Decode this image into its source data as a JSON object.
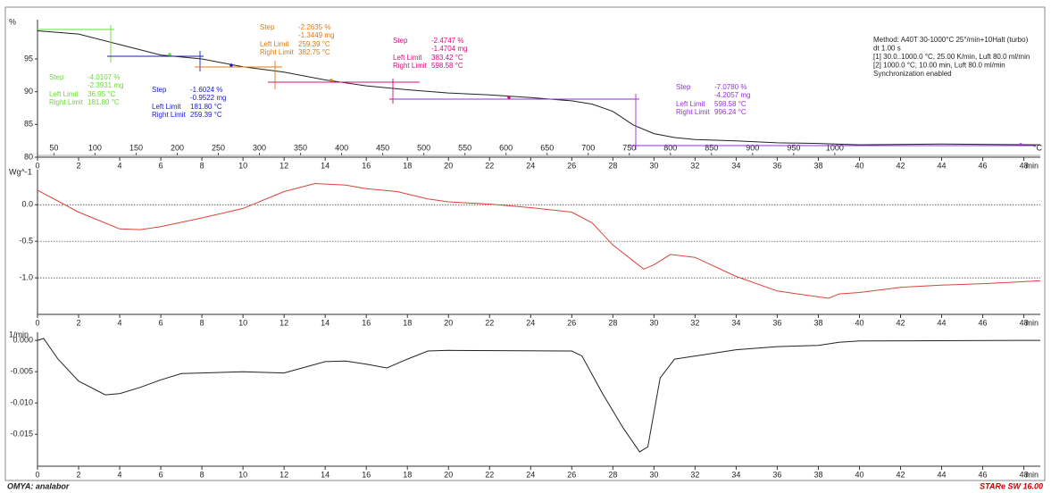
{
  "chart_data": [
    {
      "type": "line",
      "ylabel": "%",
      "x_unit": "min",
      "color": "#222222",
      "xlim": [
        0,
        48.8
      ],
      "xticks": [
        0,
        2,
        4,
        6,
        8,
        10,
        12,
        14,
        16,
        18,
        20,
        22,
        24,
        26,
        28,
        30,
        32,
        34,
        36,
        38,
        40,
        42,
        44,
        46,
        48
      ],
      "ylim": [
        80,
        101
      ],
      "yticks": [
        80,
        85,
        90,
        95
      ],
      "grid": false,
      "x": [
        0,
        2,
        4,
        6,
        8,
        10,
        12,
        14,
        16,
        18,
        20,
        22,
        24,
        26,
        27,
        28,
        29,
        30,
        31,
        32,
        34,
        36,
        38,
        40,
        44,
        48.8
      ],
      "values": [
        99.3,
        98.8,
        97.2,
        95.6,
        95,
        93.8,
        93,
        91.8,
        90.9,
        90.3,
        89.8,
        89.5,
        89.1,
        88.6,
        88.1,
        87,
        84.9,
        83.6,
        83,
        82.7,
        82.5,
        82.2,
        82.1,
        81.9,
        82,
        81.9
      ],
      "temperature_axis": {
        "unit": "°C",
        "start": 30,
        "rate": 25,
        "ticks": [
          50,
          100,
          150,
          200,
          250,
          300,
          350,
          400,
          450,
          500,
          550,
          600,
          650,
          700,
          750,
          800,
          850,
          900,
          950,
          1000
        ]
      },
      "steps": [
        {
          "color": "#66dd33",
          "label": "Step",
          "value": "-4.0107 %",
          "mass": "-2.3931 mg",
          "left_label": "Left Limit",
          "left": "36.95 °C",
          "right_label": "Right Limit",
          "right": "181.80 °C"
        },
        {
          "color": "#1a1acc",
          "label": "Step",
          "value": "-1.6024 %",
          "mass": "-0.9522 mg",
          "left_label": "Left Limit",
          "left": "181.80 °C",
          "right_label": "Right Limit",
          "right": "259.39 °C"
        },
        {
          "color": "#e07a10",
          "label": "Step",
          "value": "-2.2635 %",
          "mass": "-1.3449 mg",
          "left_label": "Left Limit",
          "left": "259.39 °C",
          "right_label": "Right Limit",
          "right": "382.75 °C"
        },
        {
          "color": "#d0107a",
          "label": "Step",
          "value": "-2.4747 %",
          "mass": "-1.4704 mg",
          "left_label": "Left Limit",
          "left": "383.42 °C",
          "right_label": "Right Limit",
          "right": "598.58 °C"
        },
        {
          "color": "#9a2ee0",
          "label": "Step",
          "value": "-7.0780 %",
          "mass": "-4.2057 mg",
          "left_label": "Left Limit",
          "left": "598.58 °C",
          "right_label": "Right Limit",
          "right": "996.24 °C"
        }
      ],
      "method": [
        "Method: A40T 30-1000°C 25°/min+10Halt (turbo)",
        "dt 1.00 s",
        "[1] 30.0..1000.0 °C, 25.00 K/min,   Luft 80.0 ml/min",
        "[2] 1000.0 °C, 10.00 min,          Luft 80.0 ml/min",
        "Synchronization enabled"
      ]
    },
    {
      "type": "line",
      "ylabel": "Wg^-1",
      "x_unit": "min",
      "color": "#d9443a",
      "xlim": [
        0,
        48.8
      ],
      "xticks": [
        0,
        2,
        4,
        6,
        8,
        10,
        12,
        14,
        16,
        18,
        20,
        22,
        24,
        26,
        28,
        30,
        32,
        34,
        36,
        38,
        40,
        42,
        44,
        46,
        48
      ],
      "ylim": [
        -1.5,
        0.48
      ],
      "yticks": [
        {
          "value": 0,
          "label": "0.0"
        },
        -0.5,
        {
          "value": -1,
          "label": "-1.0"
        }
      ],
      "grid": true,
      "x": [
        0,
        2,
        4,
        5,
        6,
        8,
        10,
        12,
        13.5,
        15,
        16,
        17.5,
        19,
        20,
        22,
        24,
        26,
        27,
        28,
        29.5,
        30,
        30.8,
        32,
        34,
        36,
        38.5,
        39,
        40,
        42,
        44,
        46,
        48.8
      ],
      "values": [
        0.2,
        -0.1,
        -0.33,
        -0.34,
        -0.3,
        -0.18,
        -0.05,
        0.18,
        0.29,
        0.27,
        0.22,
        0.18,
        0.08,
        0.04,
        0.01,
        -0.04,
        -0.1,
        -0.25,
        -0.55,
        -0.88,
        -0.82,
        -0.68,
        -0.72,
        -0.98,
        -1.18,
        -1.28,
        -1.22,
        -1.2,
        -1.13,
        -1.1,
        -1.08,
        -1.04
      ]
    },
    {
      "type": "line",
      "ylabel": "1/min",
      "x_unit": "min",
      "color": "#222222",
      "xlim": [
        0,
        48.8
      ],
      "xticks": [
        0,
        2,
        4,
        6,
        8,
        10,
        12,
        14,
        16,
        18,
        20,
        22,
        24,
        26,
        28,
        30,
        32,
        34,
        36,
        38,
        40,
        42,
        44,
        46,
        48
      ],
      "ylim": [
        -0.0201,
        0.0013
      ],
      "yticks": [
        {
          "value": 0,
          "label": "0.000"
        },
        -0.005,
        {
          "value": -0.01,
          "label": "-0.010"
        },
        -0.015
      ],
      "grid": false,
      "x": [
        0,
        0.3,
        1,
        2,
        3.3,
        4,
        5,
        6,
        7,
        8,
        10,
        12,
        14,
        15,
        16,
        17,
        18,
        19,
        20,
        26,
        26.5,
        27.5,
        28.5,
        29.3,
        29.7,
        30.3,
        31,
        32,
        34,
        36,
        38,
        39,
        40,
        48.8
      ],
      "values": [
        0,
        0.0003,
        -0.003,
        -0.0065,
        -0.0087,
        -0.0085,
        -0.0075,
        -0.0063,
        -0.0053,
        -0.0052,
        -0.005,
        -0.0052,
        -0.0034,
        -0.0033,
        -0.0038,
        -0.0044,
        -0.003,
        -0.0017,
        -0.0016,
        -0.0017,
        -0.0025,
        -0.0085,
        -0.014,
        -0.0178,
        -0.017,
        -0.006,
        -0.003,
        -0.0025,
        -0.0015,
        -0.001,
        -0.0008,
        -0.0003,
        -0.0001,
        0
      ]
    }
  ],
  "footer": {
    "left": "OMYA: analabor",
    "right": "STARe SW 16.00"
  }
}
